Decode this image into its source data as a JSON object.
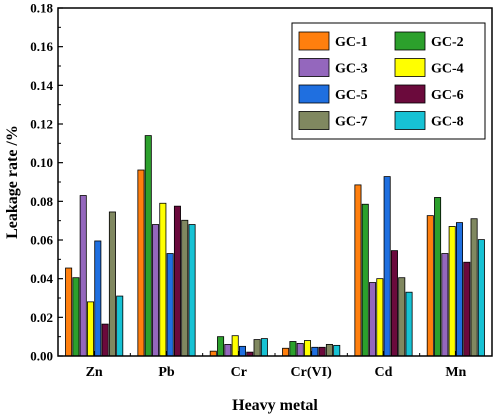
{
  "chart_data": {
    "type": "bar",
    "xlabel": "Heavy metal",
    "ylabel": "Leakage rate /%",
    "ylim": [
      0,
      0.18
    ],
    "yticks": [
      "0.00",
      "0.02",
      "0.04",
      "0.06",
      "0.08",
      "0.10",
      "0.12",
      "0.14",
      "0.16",
      "0.18"
    ],
    "categories": [
      "Zn",
      "Pb",
      "Cr",
      "Cr(VI)",
      "Cd",
      "Mn"
    ],
    "legend_position": "top-right",
    "grid": false,
    "series": [
      {
        "name": "GC-1",
        "color": "#ff7f0e",
        "values": [
          0.0455,
          0.0962,
          0.0025,
          0.004,
          0.0885,
          0.0726
        ]
      },
      {
        "name": "GC-2",
        "color": "#2ca02c",
        "values": [
          0.0405,
          0.114,
          0.01,
          0.0075,
          0.0785,
          0.082
        ]
      },
      {
        "name": "GC-3",
        "color": "#9467bd",
        "values": [
          0.083,
          0.068,
          0.006,
          0.0065,
          0.038,
          0.053
        ]
      },
      {
        "name": "GC-4",
        "color": "#ffff00",
        "values": [
          0.028,
          0.079,
          0.0105,
          0.008,
          0.04,
          0.067
        ]
      },
      {
        "name": "GC-5",
        "color": "#1f6fe0",
        "values": [
          0.0595,
          0.053,
          0.005,
          0.0045,
          0.0928,
          0.069
        ]
      },
      {
        "name": "GC-6",
        "color": "#6b0a3c",
        "values": [
          0.0165,
          0.0775,
          0.002,
          0.0045,
          0.0545,
          0.0485
        ]
      },
      {
        "name": "GC-7",
        "color": "#808860",
        "values": [
          0.0745,
          0.0702,
          0.0085,
          0.006,
          0.0405,
          0.071
        ]
      },
      {
        "name": "GC-8",
        "color": "#17c2d4",
        "values": [
          0.031,
          0.068,
          0.009,
          0.0055,
          0.033,
          0.0602
        ]
      }
    ]
  }
}
